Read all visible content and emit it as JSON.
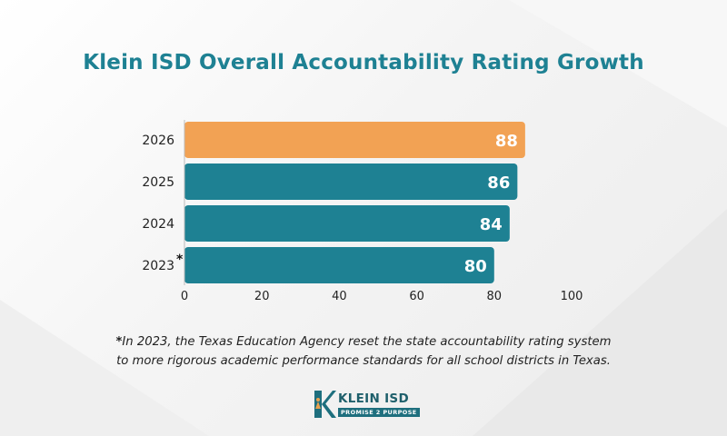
{
  "chart_data": {
    "type": "bar",
    "orientation": "horizontal",
    "title": "Klein ISD Overall Accountability Rating Growth",
    "categories": [
      "2026",
      "2025",
      "2024",
      "2023"
    ],
    "category_markers": [
      "",
      "",
      "",
      "*"
    ],
    "values": [
      88,
      86,
      84,
      80
    ],
    "value_labels": [
      "88",
      "86",
      "84",
      "80"
    ],
    "bar_colors": [
      "#f2a254",
      "#1e8193",
      "#1e8193",
      "#1e8193"
    ],
    "xlim": [
      0,
      100
    ],
    "x_ticks": [
      0,
      20,
      40,
      60,
      80,
      100
    ],
    "x_tick_labels": [
      "0",
      "20",
      "40",
      "60",
      "80",
      "100"
    ],
    "xlabel": "",
    "ylabel": "",
    "grid": false,
    "legend": "none"
  },
  "footnote": {
    "marker": "*",
    "line1": "In 2023, the Texas Education Agency reset the state accountability rating system",
    "line2": "to more rigorous academic performance standards for all school districts in Texas."
  },
  "logo": {
    "name": "KLEIN ISD",
    "tagline": "PROMISE 2 PURPOSE"
  },
  "colors": {
    "title": "#1e8193",
    "highlight": "#f2a254",
    "bar": "#1e8193"
  }
}
